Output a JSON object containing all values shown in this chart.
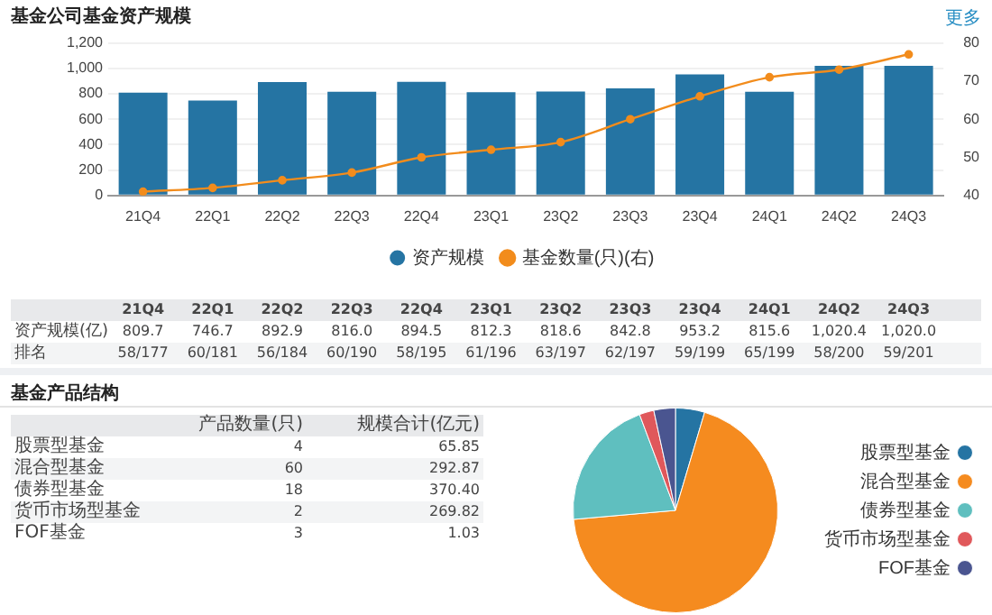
{
  "chart_data": [
    {
      "type": "bar",
      "title": "基金公司基金资产规模",
      "categories": [
        "21Q4",
        "22Q1",
        "22Q2",
        "22Q3",
        "22Q4",
        "23Q1",
        "23Q2",
        "23Q3",
        "23Q4",
        "24Q1",
        "24Q2",
        "24Q3"
      ],
      "series": [
        {
          "name": "资产规模",
          "type": "bar",
          "color": "#2574a3",
          "values": [
            809.7,
            746.7,
            892.9,
            816.0,
            894.5,
            812.3,
            818.6,
            842.8,
            953.2,
            815.6,
            1020.4,
            1020.0
          ],
          "value_labels": [
            "809.7",
            "746.7",
            "892.9",
            "816.0",
            "894.5",
            "812.3",
            "818.6",
            "842.8",
            "953.2",
            "815.6",
            "1,020.4",
            "1,020.0"
          ]
        },
        {
          "name": "基金数量(只)(右)",
          "type": "line",
          "axis": "y2",
          "color": "#f28c1c",
          "values": [
            41,
            42,
            44,
            46,
            50,
            52,
            54,
            60,
            66,
            71,
            73,
            77
          ]
        }
      ],
      "ylim": [
        0,
        1200
      ],
      "yticks": [
        0,
        200,
        400,
        600,
        800,
        {
          "value": 1000,
          "label": "1,000"
        },
        {
          "value": 1200,
          "label": "1,200"
        }
      ],
      "y2lim": [
        40,
        80
      ],
      "y2ticks": [
        40,
        50,
        60,
        70,
        80
      ],
      "grid": "y",
      "legend": "bottom",
      "marker": "circle",
      "annotations": [
        "更多",
        "资产规模(亿)",
        "排名",
        "58/177",
        "60/181",
        "56/184",
        "60/190",
        "58/195",
        "61/196",
        "63/197",
        "62/197",
        "59/199",
        "65/199",
        "58/200",
        "59/201"
      ]
    },
    {
      "type": "other",
      "title": "基金产品结构",
      "annotations": [
        "产品数量(只)",
        "规模合计(亿元)",
        "股票型基金",
        "4",
        "65.85",
        "混合型基金",
        "60",
        "292.87",
        "债券型基金",
        "18",
        "370.40",
        "货币市场型基金",
        "2",
        "269.82",
        "FOF基金",
        "3",
        "1.03"
      ]
    },
    {
      "type": "pie",
      "categories": [
        "股票型基金",
        "混合型基金",
        "债券型基金",
        "货币市场型基金",
        "FOF基金"
      ],
      "values": [
        4.6,
        69.0,
        20.7,
        2.3,
        3.4
      ],
      "colors": [
        "#2574a3",
        "#f58b1f",
        "#5fbfbf",
        "#e0585b",
        "#4a5590"
      ],
      "legend": "right"
    }
  ]
}
